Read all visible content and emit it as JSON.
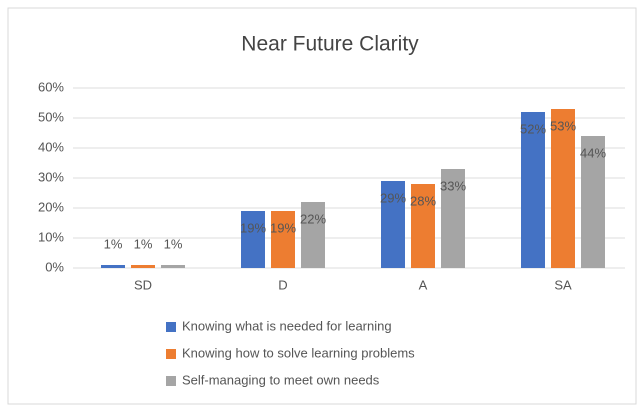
{
  "chart_data": {
    "type": "bar",
    "title": "Near Future Clarity",
    "categories": [
      "SD",
      "D",
      "A",
      "SA"
    ],
    "series": [
      {
        "name": "Knowing what is needed for learning",
        "color": "#4472c4",
        "values": [
          1,
          19,
          29,
          52
        ],
        "value_labels": [
          "1%",
          "19%",
          "29%",
          "52%"
        ]
      },
      {
        "name": "Knowing how to solve learning problems",
        "color": "#ed7d31",
        "values": [
          1,
          19,
          28,
          53
        ],
        "value_labels": [
          "1%",
          "19%",
          "28%",
          "53%"
        ]
      },
      {
        "name": "Self-managing to meet own needs",
        "color": "#a5a5a5",
        "values": [
          1,
          22,
          33,
          44
        ],
        "value_labels": [
          "1%",
          "22%",
          "33%",
          "44%"
        ]
      }
    ],
    "ylim": [
      0,
      60
    ],
    "yticks": [
      {
        "value": 0,
        "label": "0%"
      },
      {
        "value": 10,
        "label": "10%"
      },
      {
        "value": 20,
        "label": "20%"
      },
      {
        "value": 30,
        "label": "30%"
      },
      {
        "value": 40,
        "label": "40%"
      },
      {
        "value": 50,
        "label": "50%"
      },
      {
        "value": 60,
        "label": "60%"
      }
    ],
    "grid": true
  }
}
